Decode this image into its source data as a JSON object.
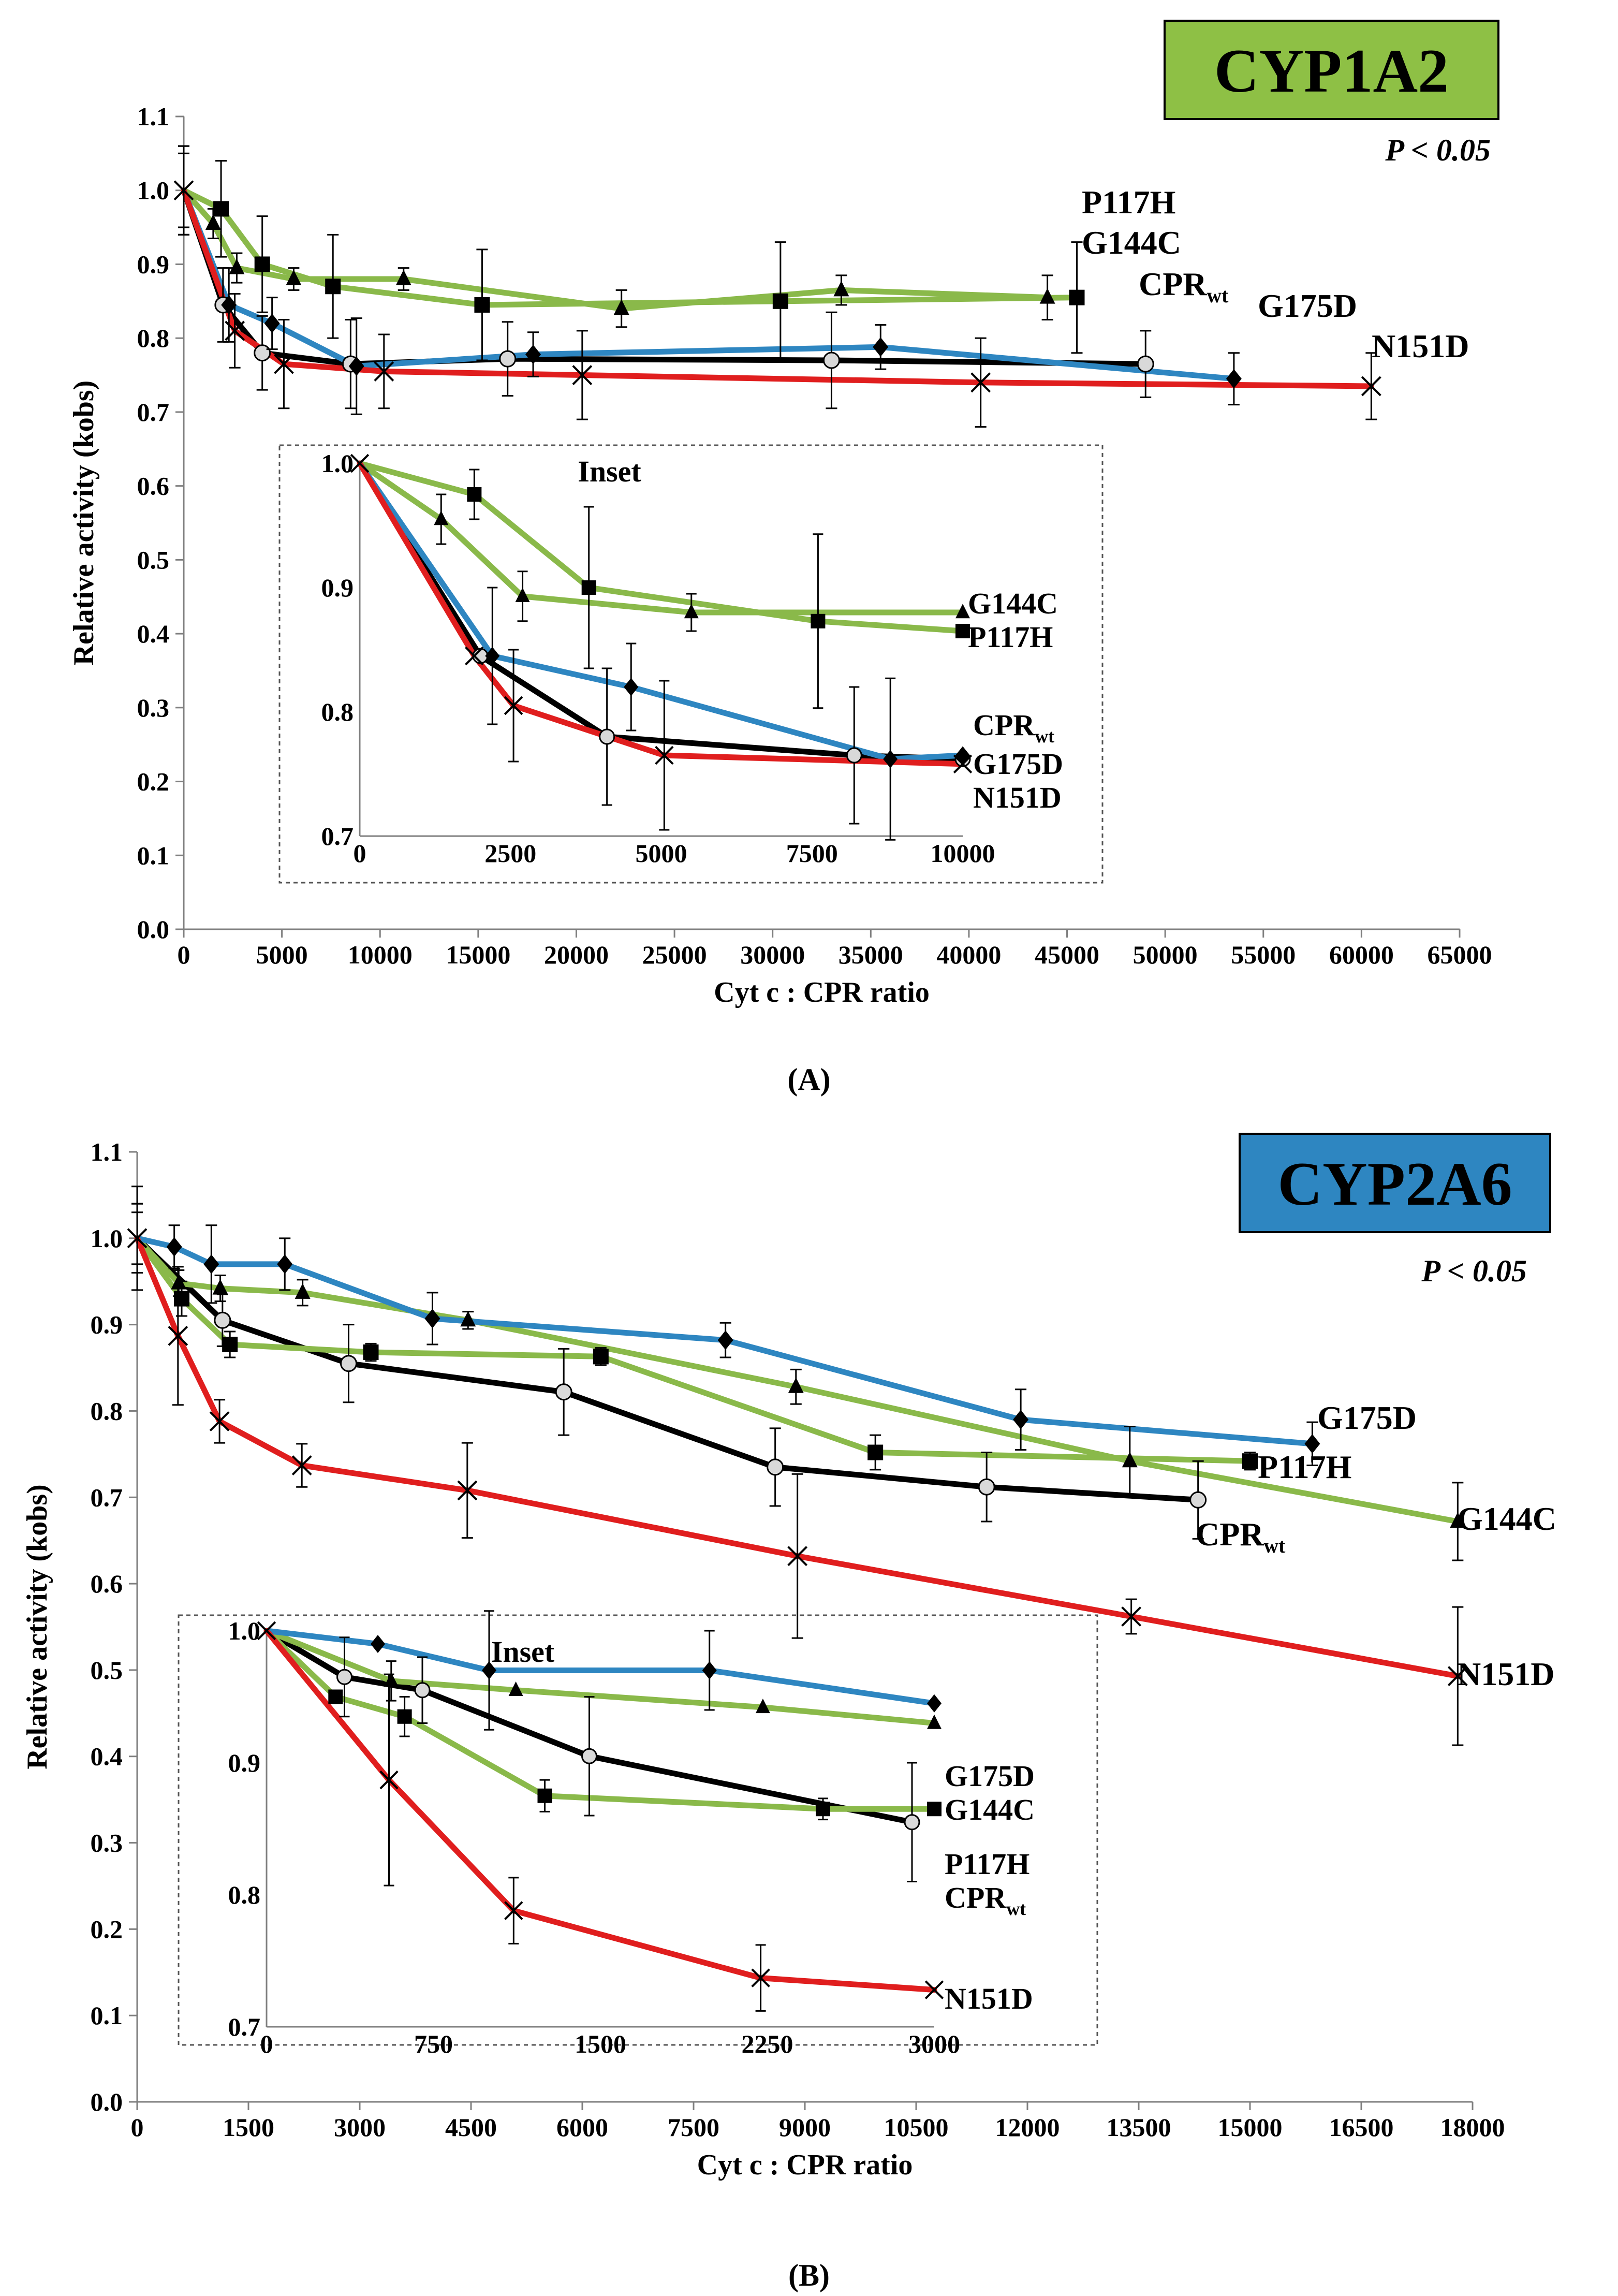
{
  "colors": {
    "black": "#000000",
    "blue": "#2e86c1",
    "green": "#8ab94a",
    "red": "#e01e1e",
    "badgeA": "#8ec045",
    "badgeB": "#2e86c1",
    "axis": "#7f7f7f"
  },
  "panels": [
    {
      "id": "A",
      "badge": "CYP1A2",
      "pvalue": "P < 0.05",
      "caption": "(A)",
      "xlabel": "Cyt c : CPR ratio",
      "ylabel": "Relative activity (kobs)",
      "xlim": [
        0,
        65000
      ],
      "ylim": [
        0.0,
        1.1
      ],
      "xticks": [
        0,
        5000,
        10000,
        15000,
        20000,
        25000,
        30000,
        35000,
        40000,
        45000,
        50000,
        55000,
        60000,
        65000
      ],
      "yticks": [
        0.0,
        0.1,
        0.2,
        0.3,
        0.4,
        0.5,
        0.6,
        0.7,
        0.8,
        0.9,
        1.0,
        1.1
      ],
      "series": [
        {
          "name": "CPRwt",
          "label": "CPR",
          "sub": "wt",
          "color": "black",
          "marker": "circle",
          "x": [
            0,
            2000,
            4000,
            8500,
            16500,
            33000,
            49000
          ],
          "y": [
            1.0,
            0.845,
            0.78,
            0.765,
            0.772,
            0.77,
            0.765
          ],
          "err": [
            0.06,
            0.05,
            0.05,
            0.06,
            0.05,
            0.065,
            0.045
          ]
        },
        {
          "name": "P117H",
          "label": "P117H",
          "color": "green",
          "marker": "square",
          "x": [
            0,
            1900,
            4000,
            7600,
            15200,
            30400,
            45500
          ],
          "y": [
            1.0,
            0.975,
            0.9,
            0.87,
            0.845,
            0.85,
            0.855
          ],
          "err": [
            0.06,
            0.065,
            0.065,
            0.07,
            0.075,
            0.08,
            0.075
          ]
        },
        {
          "name": "G144C",
          "label": "G144C",
          "color": "green",
          "marker": "triangle",
          "x": [
            0,
            1500,
            2700,
            5600,
            11200,
            22300,
            33500,
            44000
          ],
          "y": [
            1.0,
            0.955,
            0.895,
            0.88,
            0.88,
            0.84,
            0.865,
            0.855
          ],
          "err": [
            0.05,
            0.02,
            0.02,
            0.015,
            0.015,
            0.025,
            0.02,
            0.03
          ]
        },
        {
          "name": "G175D",
          "label": "G175D",
          "color": "blue",
          "marker": "diamond",
          "x": [
            0,
            2300,
            4500,
            8800,
            17800,
            35500,
            53500
          ],
          "y": [
            1.0,
            0.845,
            0.82,
            0.762,
            0.778,
            0.788,
            0.745
          ],
          "err": [
            0.06,
            0.05,
            0.035,
            0.065,
            0.03,
            0.03,
            0.035
          ]
        },
        {
          "name": "N151D",
          "label": "N151D",
          "color": "red",
          "marker": "x",
          "x": [
            0,
            2600,
            5100,
            10200,
            20300,
            40600,
            60500
          ],
          "y": [
            1.0,
            0.81,
            0.765,
            0.755,
            0.75,
            0.74,
            0.735
          ],
          "err": [
            0.05,
            0.05,
            0.06,
            0.05,
            0.06,
            0.06,
            0.045
          ]
        }
      ],
      "inset": {
        "title": "Inset",
        "xlim": [
          0,
          10000
        ],
        "ylim": [
          0.7,
          1.0
        ],
        "xticks": [
          0,
          2500,
          5000,
          7500,
          10000
        ],
        "yticks": [
          0.7,
          0.8,
          0.9,
          1.0
        ],
        "series": [
          {
            "name": "CPRwt",
            "label": "CPR",
            "sub": "wt",
            "color": "black",
            "marker": "circle",
            "x": [
              0,
              2000,
              4100,
              8200,
              10000
            ],
            "y": [
              1.0,
              0.845,
              0.78,
              0.765,
              0.762
            ],
            "err": [
              0.0,
              0.0,
              0.055,
              0.055,
              0.0
            ]
          },
          {
            "name": "P117H",
            "label": "P117H",
            "color": "green",
            "marker": "square",
            "x": [
              0,
              1900,
              3800,
              7600,
              10000
            ],
            "y": [
              1.0,
              0.975,
              0.9,
              0.873,
              0.865
            ],
            "err": [
              0.0,
              0.02,
              0.065,
              0.07,
              0.0
            ]
          },
          {
            "name": "G144C",
            "label": "G144C",
            "color": "green",
            "marker": "triangle",
            "x": [
              0,
              1350,
              2700,
              5500,
              10000
            ],
            "y": [
              1.0,
              0.955,
              0.893,
              0.88,
              0.88
            ],
            "err": [
              0.0,
              0.02,
              0.02,
              0.015,
              0.0
            ]
          },
          {
            "name": "G175D",
            "label": "G175D",
            "color": "blue",
            "marker": "diamond",
            "x": [
              0,
              2200,
              4500,
              8800,
              10000
            ],
            "y": [
              1.0,
              0.845,
              0.82,
              0.762,
              0.765
            ],
            "err": [
              0.0,
              0.055,
              0.035,
              0.065,
              0.0
            ]
          },
          {
            "name": "N151D",
            "label": "N151D",
            "color": "red",
            "marker": "x",
            "x": [
              0,
              1900,
              2550,
              5050,
              10000
            ],
            "y": [
              1.0,
              0.845,
              0.805,
              0.765,
              0.758
            ],
            "err": [
              0.0,
              0.0,
              0.045,
              0.06,
              0.0
            ]
          }
        ]
      }
    },
    {
      "id": "B",
      "badge": "CYP2A6",
      "pvalue": "P < 0.05",
      "caption": "(B)",
      "xlabel": "Cyt c : CPR ratio",
      "ylabel": "Relative activity (kobs)",
      "xlim": [
        0,
        18000
      ],
      "ylim": [
        0.0,
        1.1
      ],
      "xticks": [
        0,
        1500,
        3000,
        4500,
        6000,
        7500,
        9000,
        10500,
        12000,
        13500,
        15000,
        16500,
        18000
      ],
      "yticks": [
        0.0,
        0.1,
        0.2,
        0.3,
        0.4,
        0.5,
        0.6,
        0.7,
        0.8,
        0.9,
        1.0,
        1.1
      ],
      "series": [
        {
          "name": "CPRwt",
          "label": "CPR",
          "sub": "wt",
          "color": "black",
          "marker": "circle",
          "x": [
            0,
            1150,
            2850,
            5750,
            8600,
            11450,
            14300
          ],
          "y": [
            1.0,
            0.905,
            0.855,
            0.822,
            0.735,
            0.712,
            0.697
          ],
          "err": [
            0.06,
            0.03,
            0.045,
            0.05,
            0.045,
            0.04,
            0.045
          ]
        },
        {
          "name": "P117H",
          "label": "P117H",
          "color": "green",
          "marker": "square",
          "x": [
            0,
            600,
            1250,
            3150,
            6250,
            9950,
            15000
          ],
          "y": [
            1.0,
            0.93,
            0.877,
            0.868,
            0.863,
            0.752,
            0.742
          ],
          "err": [
            0.04,
            0.02,
            0.015,
            0.01,
            0.01,
            0.02,
            0.01
          ]
        },
        {
          "name": "G144C",
          "label": "G144C",
          "color": "green",
          "marker": "triangle",
          "x": [
            0,
            560,
            1120,
            2230,
            4460,
            8880,
            13380,
            17800
          ],
          "y": [
            1.0,
            0.948,
            0.942,
            0.937,
            0.905,
            0.828,
            0.742,
            0.672
          ],
          "err": [
            0.04,
            0.015,
            0.015,
            0.015,
            0.01,
            0.02,
            0.04,
            0.045
          ]
        },
        {
          "name": "G175D",
          "label": "G175D",
          "color": "blue",
          "marker": "diamond",
          "x": [
            0,
            500,
            1000,
            1990,
            3980,
            7930,
            11910,
            15840
          ],
          "y": [
            1.0,
            0.99,
            0.97,
            0.97,
            0.907,
            0.882,
            0.79,
            0.762
          ],
          "err": [
            0.03,
            0.025,
            0.045,
            0.03,
            0.03,
            0.02,
            0.035,
            0.025
          ]
        },
        {
          "name": "N151D",
          "label": "N151D",
          "color": "red",
          "marker": "x",
          "x": [
            0,
            550,
            1110,
            2220,
            4450,
            8900,
            13400,
            17800
          ],
          "y": [
            1.0,
            0.887,
            0.788,
            0.737,
            0.708,
            0.632,
            0.562,
            0.493
          ],
          "err": [
            0.04,
            0.08,
            0.025,
            0.025,
            0.055,
            0.095,
            0.02,
            0.08
          ]
        }
      ],
      "inset": {
        "title": "Inset",
        "xlim": [
          0,
          3000
        ],
        "ylim": [
          0.7,
          1.0
        ],
        "xticks": [
          0,
          750,
          1500,
          2250,
          3000
        ],
        "yticks": [
          0.7,
          0.8,
          0.9,
          1.0
        ],
        "series": [
          {
            "name": "CPRwt",
            "label": "CPR",
            "sub": "wt",
            "color": "black",
            "marker": "circle",
            "x": [
              0,
              350,
              700,
              1450,
              2900
            ],
            "y": [
              1.0,
              0.965,
              0.955,
              0.905,
              0.855
            ],
            "err": [
              0.0,
              0.03,
              0.025,
              0.045,
              0.045
            ]
          },
          {
            "name": "P117H",
            "label": "P117H",
            "color": "green",
            "marker": "square",
            "x": [
              0,
              310,
              620,
              1250,
              2500,
              3000
            ],
            "y": [
              1.0,
              0.95,
              0.935,
              0.875,
              0.865,
              0.865
            ],
            "err": [
              0.0,
              0.0,
              0.015,
              0.012,
              0.008,
              0.0
            ]
          },
          {
            "name": "G144C",
            "label": "G144C",
            "color": "green",
            "marker": "triangle",
            "x": [
              0,
              560,
              1120,
              2230,
              3000
            ],
            "y": [
              1.0,
              0.962,
              0.955,
              0.942,
              0.93
            ],
            "err": [
              0.0,
              0.015,
              0.0,
              0.0,
              0.0
            ]
          },
          {
            "name": "G175D",
            "label": "G175D",
            "color": "blue",
            "marker": "diamond",
            "x": [
              0,
              500,
              1000,
              1990,
              3000
            ],
            "y": [
              1.0,
              0.99,
              0.97,
              0.97,
              0.945
            ],
            "err": [
              0.0,
              0.0,
              0.045,
              0.03,
              0.0
            ]
          },
          {
            "name": "N151D",
            "label": "N151D",
            "color": "red",
            "marker": "x",
            "x": [
              0,
              550,
              1110,
              2220,
              3000
            ],
            "y": [
              1.0,
              0.887,
              0.788,
              0.737,
              0.728
            ],
            "err": [
              0.0,
              0.08,
              0.025,
              0.025,
              0.0
            ]
          }
        ]
      }
    }
  ],
  "chart_data": [
    {
      "type": "line",
      "title": "CYP1A2",
      "xlabel": "Cyt c : CPR ratio",
      "ylabel": "Relative activity (kobs)",
      "xlim": [
        0,
        65000
      ],
      "ylim": [
        0.0,
        1.1
      ],
      "annotation": "P < 0.05",
      "series": [
        {
          "name": "CPRwt",
          "x": [
            0,
            2000,
            4000,
            8500,
            16500,
            33000,
            49000
          ],
          "y": [
            1.0,
            0.845,
            0.78,
            0.765,
            0.772,
            0.77,
            0.765
          ]
        },
        {
          "name": "P117H",
          "x": [
            0,
            1900,
            4000,
            7600,
            15200,
            30400,
            45500
          ],
          "y": [
            1.0,
            0.975,
            0.9,
            0.87,
            0.845,
            0.85,
            0.855
          ]
        },
        {
          "name": "G144C",
          "x": [
            0,
            1500,
            2700,
            5600,
            11200,
            22300,
            33500,
            44000
          ],
          "y": [
            1.0,
            0.955,
            0.895,
            0.88,
            0.88,
            0.84,
            0.865,
            0.855
          ]
        },
        {
          "name": "G175D",
          "x": [
            0,
            2300,
            4500,
            8800,
            17800,
            35500,
            53500
          ],
          "y": [
            1.0,
            0.845,
            0.82,
            0.762,
            0.778,
            0.788,
            0.745
          ]
        },
        {
          "name": "N151D",
          "x": [
            0,
            2600,
            5100,
            10200,
            20300,
            40600,
            60500
          ],
          "y": [
            1.0,
            0.81,
            0.765,
            0.755,
            0.75,
            0.74,
            0.735
          ]
        }
      ]
    },
    {
      "type": "line",
      "title": "CYP2A6",
      "xlabel": "Cyt c : CPR ratio",
      "ylabel": "Relative activity (kobs)",
      "xlim": [
        0,
        18000
      ],
      "ylim": [
        0.0,
        1.1
      ],
      "annotation": "P < 0.05",
      "series": [
        {
          "name": "CPRwt",
          "x": [
            0,
            1150,
            2850,
            5750,
            8600,
            11450,
            14300
          ],
          "y": [
            1.0,
            0.905,
            0.855,
            0.822,
            0.735,
            0.712,
            0.697
          ]
        },
        {
          "name": "P117H",
          "x": [
            0,
            600,
            1250,
            3150,
            6250,
            9950,
            15000
          ],
          "y": [
            1.0,
            0.93,
            0.877,
            0.868,
            0.863,
            0.752,
            0.742
          ]
        },
        {
          "name": "G144C",
          "x": [
            0,
            560,
            1120,
            2230,
            4460,
            8880,
            13380,
            17800
          ],
          "y": [
            1.0,
            0.948,
            0.942,
            0.937,
            0.905,
            0.828,
            0.742,
            0.672
          ]
        },
        {
          "name": "G175D",
          "x": [
            0,
            500,
            1000,
            1990,
            3980,
            7930,
            11910,
            15840
          ],
          "y": [
            1.0,
            0.99,
            0.97,
            0.97,
            0.907,
            0.882,
            0.79,
            0.762
          ]
        },
        {
          "name": "N151D",
          "x": [
            0,
            550,
            1110,
            2220,
            4450,
            8900,
            13400,
            17800
          ],
          "y": [
            1.0,
            0.887,
            0.788,
            0.737,
            0.708,
            0.632,
            0.562,
            0.493
          ]
        }
      ]
    }
  ]
}
